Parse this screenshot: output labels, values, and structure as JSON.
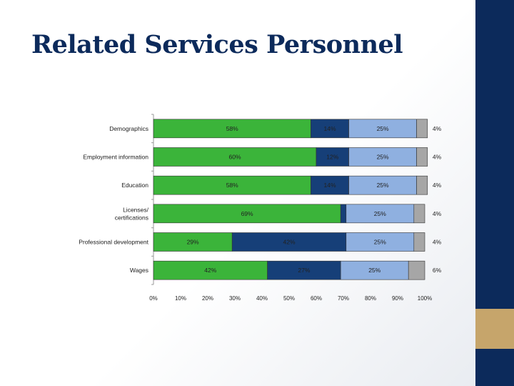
{
  "slide": {
    "title": "Related Services Personnel"
  },
  "colors": {
    "band": "#0c2a5b",
    "gold": "#c6a56b",
    "title": "#0c2a5b"
  },
  "chart_data": {
    "type": "bar",
    "orientation": "horizontal",
    "stacked": true,
    "title": "",
    "xlabel": "",
    "ylabel": "",
    "xlim": [
      0,
      100
    ],
    "x_ticks": [
      "0%",
      "10%",
      "20%",
      "30%",
      "40%",
      "50%",
      "60%",
      "70%",
      "80%",
      "90%",
      "100%"
    ],
    "categories": [
      "Demographics",
      "Employment information",
      "Education",
      "Licenses/ certifications",
      "Professional development",
      "Wages"
    ],
    "series": [
      {
        "color": "#3bb43a",
        "values": [
          58,
          60,
          58,
          69,
          29,
          42
        ],
        "labels": [
          "58%",
          "60%",
          "58%",
          "69%",
          "29%",
          "42%"
        ]
      },
      {
        "color": "#163f78",
        "values": [
          14,
          12,
          14,
          2,
          42,
          27
        ],
        "labels": [
          "14%",
          "12%",
          "14%",
          "2%",
          "42%",
          "27%"
        ]
      },
      {
        "color": "#8fb0e0",
        "values": [
          25,
          25,
          25,
          25,
          25,
          25
        ],
        "labels": [
          "25%",
          "25%",
          "25%",
          "25%",
          "25%",
          "25%"
        ]
      },
      {
        "color": "#a6a6a6",
        "values": [
          4,
          4,
          4,
          4,
          4,
          6
        ],
        "labels": [
          "4%",
          "4%",
          "4%",
          "4%",
          "4%",
          "6%"
        ]
      }
    ]
  }
}
